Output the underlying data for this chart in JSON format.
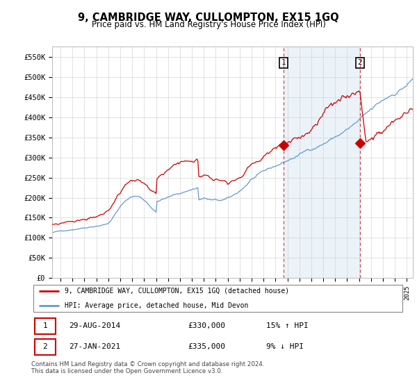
{
  "title": "9, CAMBRIDGE WAY, CULLOMPTON, EX15 1GQ",
  "subtitle": "Price paid vs. HM Land Registry's House Price Index (HPI)",
  "ylabel_ticks": [
    "£0",
    "£50K",
    "£100K",
    "£150K",
    "£200K",
    "£250K",
    "£300K",
    "£350K",
    "£400K",
    "£450K",
    "£500K",
    "£550K"
  ],
  "ytick_values": [
    0,
    50000,
    100000,
    150000,
    200000,
    250000,
    300000,
    350000,
    400000,
    450000,
    500000,
    550000
  ],
  "xlim_start": 1995.3,
  "xlim_end": 2025.5,
  "ylim_min": 0,
  "ylim_max": 575000,
  "sale1_date": 2014.66,
  "sale1_price": 330000,
  "sale2_date": 2021.07,
  "sale2_price": 335000,
  "red_color": "#cc0000",
  "blue_color": "#6699cc",
  "blue_fill_color": "#d8e8f5",
  "background_color": "#ffffff",
  "grid_color": "#cccccc",
  "legend_label_red": "9, CAMBRIDGE WAY, CULLOMPTON, EX15 1GQ (detached house)",
  "legend_label_blue": "HPI: Average price, detached house, Mid Devon",
  "footnote": "Contains HM Land Registry data © Crown copyright and database right 2024.\nThis data is licensed under the Open Government Licence v3.0.",
  "table_row1": [
    "1",
    "29-AUG-2014",
    "£330,000",
    "15% ↑ HPI"
  ],
  "table_row2": [
    "2",
    "27-JAN-2021",
    "£335,000",
    "9% ↓ HPI"
  ]
}
